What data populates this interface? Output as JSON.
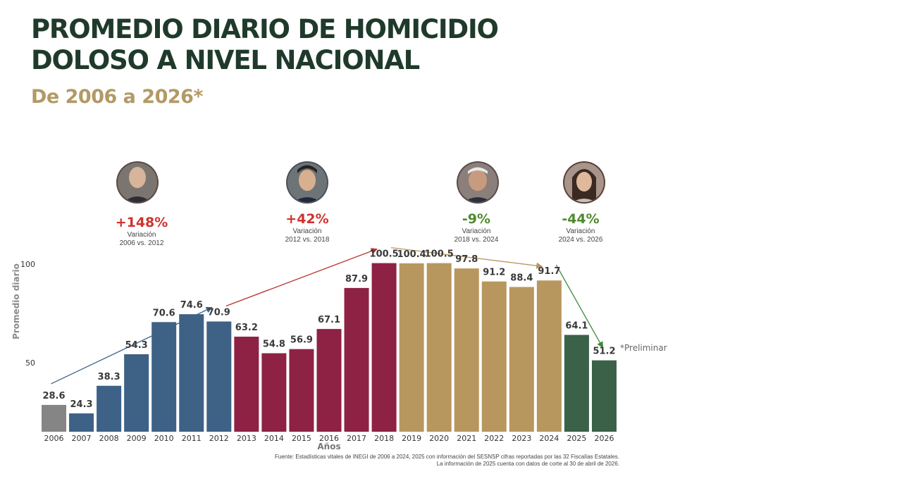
{
  "header": {
    "title_line1": "PROMEDIO DIARIO DE HOMICIDIO",
    "title_line2": "DOLOSO A NIVEL NACIONAL",
    "subtitle": "De 2006 a 2026*"
  },
  "chart_data": {
    "type": "bar",
    "ylabel": "Promedio diario",
    "xlabel": "Años",
    "yticks": [
      50,
      100
    ],
    "ylim": [
      15,
      105
    ],
    "grid": false,
    "categories": [
      "2006",
      "2007",
      "2008",
      "2009",
      "2010",
      "2011",
      "2012",
      "2013",
      "2014",
      "2015",
      "2016",
      "2017",
      "2018",
      "2019",
      "2020",
      "2021",
      "2022",
      "2023",
      "2024",
      "2025",
      "2026"
    ],
    "values": [
      28.6,
      24.3,
      38.3,
      54.3,
      70.6,
      74.6,
      70.9,
      63.2,
      54.8,
      56.9,
      67.1,
      87.9,
      100.5,
      100.4,
      100.5,
      97.8,
      91.2,
      88.4,
      91.7,
      64.1,
      51.2
    ],
    "value_labels": [
      "28.6",
      "24.3",
      "38.3",
      "54.3",
      "70.6",
      "74.6",
      "70.9",
      "63.2",
      "54.8",
      "56.9",
      "67.1",
      "87.9",
      "100.5",
      "100.4",
      "100.5",
      "97.8",
      "91.2",
      "88.4",
      "91.7",
      "64.1",
      "51.2"
    ],
    "bar_colors": [
      "#858585",
      "#3e6186",
      "#3e6186",
      "#3e6186",
      "#3e6186",
      "#3e6186",
      "#3e6186",
      "#8e2244",
      "#8e2244",
      "#8e2244",
      "#8e2244",
      "#8e2244",
      "#8e2244",
      "#b8975e",
      "#b8975e",
      "#b8975e",
      "#b8975e",
      "#b8975e",
      "#b8975e",
      "#3b6248",
      "#3b6248"
    ],
    "periods": [
      {
        "start": 0,
        "end": 6,
        "pct": "+148%",
        "label": "Variación",
        "range": "2006 vs. 2012",
        "color": "#d1322e"
      },
      {
        "start": 6,
        "end": 12,
        "pct": "+42%",
        "label": "Variación",
        "range": "2012 vs. 2018",
        "color": "#d1322e"
      },
      {
        "start": 12,
        "end": 18,
        "pct": "-9%",
        "label": "Variación",
        "range": "2018 vs. 2024",
        "color": "#4f8a2e"
      },
      {
        "start": 18,
        "end": 20,
        "pct": "-44%",
        "label": "Variación",
        "range": "2024 vs. 2026",
        "color": "#4f8a2e"
      }
    ],
    "arrow_colors": [
      "#3e6186",
      "#b8322f",
      "#b8975e",
      "#3e8a3a"
    ],
    "annotation": "*Preliminar",
    "source_line1": "Fuente: Estadísticas vitales de INEGI de 2006 a 2024, 2025 con información del SESNSP cifras reportadas por las 32 Fiscalías Estatales.",
    "source_line2": "La información de 2025 cuenta con datos de corte al 30 de abril de 2026."
  }
}
